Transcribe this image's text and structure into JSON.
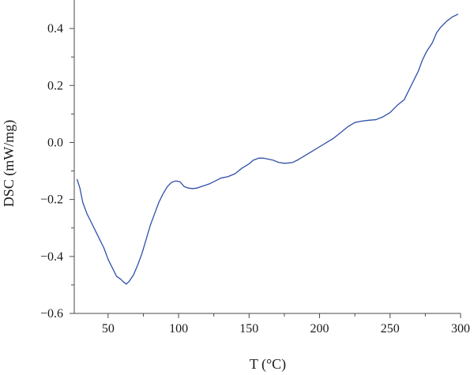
{
  "chart_data": {
    "type": "line",
    "title": "",
    "xlabel": "T (°C)",
    "ylabel": "DSC (mW/mg)",
    "xlim": [
      26,
      300
    ],
    "ylim": [
      -0.6,
      0.5
    ],
    "x_major_ticks": [
      50,
      100,
      150,
      200,
      250,
      300
    ],
    "x_minor_ticks": [
      75,
      125,
      175,
      225,
      275
    ],
    "y_major_ticks": [
      -0.6,
      -0.4,
      -0.2,
      0.0,
      0.2,
      0.4
    ],
    "y_minor_ticks": [
      -0.5,
      -0.3,
      -0.1,
      0.1,
      0.3
    ],
    "x_tick_labels": [
      "50",
      "100",
      "150",
      "200",
      "250",
      "300"
    ],
    "y_tick_labels": [
      "−0.6",
      "−0.4",
      "−0.2",
      "0.0",
      "0.2",
      "0.4"
    ],
    "grid": false,
    "series": [
      {
        "color": "#2f4fa8",
        "x": [
          28,
          30,
          32,
          35,
          38,
          41,
          44,
          47,
          50,
          53,
          56,
          59,
          61,
          63,
          65,
          68,
          71,
          74,
          77,
          80,
          83,
          86,
          89,
          92,
          95,
          98,
          101,
          104,
          107,
          110,
          113,
          116,
          119,
          122,
          126,
          130,
          135,
          140,
          145,
          150,
          153,
          157,
          160,
          163,
          167,
          171,
          175,
          178,
          181,
          185,
          190,
          195,
          200,
          205,
          210,
          215,
          220,
          225,
          230,
          235,
          240,
          245,
          250,
          255,
          260,
          262,
          265,
          268,
          270,
          273,
          276,
          280,
          283,
          286,
          290,
          294,
          298
        ],
        "y": [
          -0.13,
          -0.16,
          -0.21,
          -0.25,
          -0.28,
          -0.31,
          -0.34,
          -0.37,
          -0.41,
          -0.44,
          -0.47,
          -0.48,
          -0.49,
          -0.497,
          -0.487,
          -0.465,
          -0.43,
          -0.39,
          -0.34,
          -0.29,
          -0.25,
          -0.21,
          -0.18,
          -0.155,
          -0.14,
          -0.135,
          -0.138,
          -0.155,
          -0.16,
          -0.162,
          -0.16,
          -0.155,
          -0.15,
          -0.145,
          -0.135,
          -0.125,
          -0.12,
          -0.11,
          -0.09,
          -0.075,
          -0.062,
          -0.055,
          -0.055,
          -0.058,
          -0.062,
          -0.07,
          -0.073,
          -0.072,
          -0.07,
          -0.06,
          -0.045,
          -0.03,
          -0.015,
          0.0,
          0.015,
          0.035,
          0.055,
          0.07,
          0.075,
          0.078,
          0.08,
          0.09,
          0.105,
          0.13,
          0.15,
          0.17,
          0.2,
          0.23,
          0.25,
          0.29,
          0.32,
          0.35,
          0.385,
          0.405,
          0.425,
          0.44,
          0.45
        ]
      }
    ]
  }
}
